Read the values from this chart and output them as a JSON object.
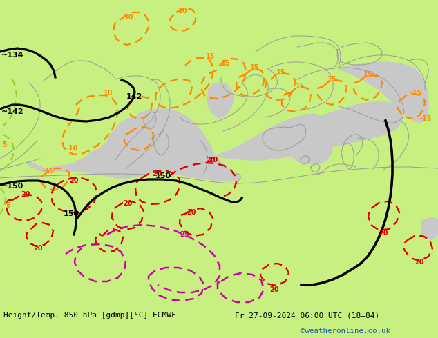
{
  "title_left": "Height/Temp. 850 hPa [gdmp][°C] ECMWF",
  "title_right": "Fr 27-09-2024 06:00 UTC (18+84)",
  "credit": "©weatheronline.co.uk",
  "land_color": "#c8f0a0",
  "sea_color": "#c8c8c8",
  "border_color": "#999999",
  "bottom_bar_color": "#c8f080",
  "black_color": "#000000",
  "orange_color": "#FF8800",
  "red_color": "#DD0000",
  "pink_color": "#CC00AA",
  "green_color": "#99CC33",
  "figsize": [
    6.34,
    4.9
  ],
  "dpi": 100,
  "credit_color": "#1a5fa8"
}
